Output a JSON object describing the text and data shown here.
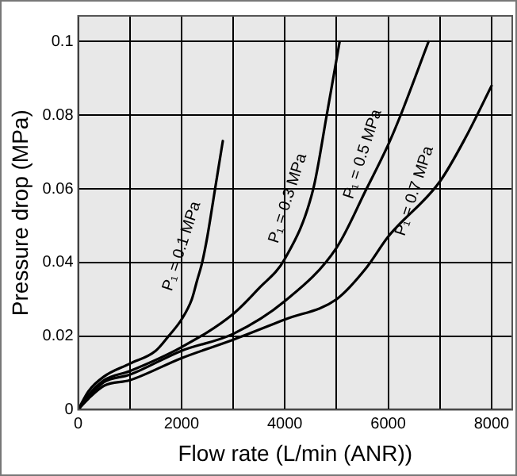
{
  "chart_data": {
    "type": "line",
    "xlabel": "Flow rate (L/min (ANR))",
    "ylabel": "Pressure drop (MPa)",
    "xlim": [
      0,
      8400
    ],
    "ylim": [
      0,
      0.107
    ],
    "xticks": [
      0,
      {
        "value": 1000,
        "label": null
      },
      2000,
      {
        "value": 3000,
        "label": null
      },
      4000,
      {
        "value": 5000,
        "label": null
      },
      6000,
      {
        "value": 7000,
        "label": null
      },
      8000
    ],
    "yticks": [
      0,
      0.02,
      0.04,
      0.06,
      0.08,
      0.1
    ],
    "grid": true,
    "legend": false,
    "marker": "none",
    "line_style": "solid",
    "series": [
      {
        "name": "P₁ = 0.1 MPa",
        "color": "#000000",
        "x": [
          0,
          200,
          500,
          1000,
          1500,
          1750,
          2000,
          2200,
          2300,
          2400,
          2500,
          2650,
          2800
        ],
        "values": [
          0,
          0.005,
          0.009,
          0.0125,
          0.016,
          0.02,
          0.0245,
          0.03,
          0.035,
          0.04,
          0.047,
          0.06,
          0.073
        ]
      },
      {
        "name": "P₁ = 0.3 MPa",
        "color": "#000000",
        "x": [
          0,
          200,
          500,
          1000,
          2000,
          3000,
          3500,
          4000,
          4550,
          4810,
          5060
        ],
        "values": [
          0,
          0.004,
          0.008,
          0.0105,
          0.017,
          0.026,
          0.033,
          0.041,
          0.06,
          0.08,
          0.1
        ]
      },
      {
        "name": "P₁ = 0.5 MPa",
        "color": "#000000",
        "x": [
          0,
          200,
          500,
          1000,
          2000,
          3000,
          4000,
          5000,
          5580,
          6000,
          6240,
          6780
        ],
        "values": [
          0,
          0.0035,
          0.0075,
          0.0095,
          0.016,
          0.0206,
          0.0295,
          0.044,
          0.06,
          0.072,
          0.08,
          0.1
        ]
      },
      {
        "name": "P₁ = 0.7 MPa",
        "color": "#000000",
        "x": [
          0,
          200,
          500,
          1000,
          2000,
          3000,
          4000,
          5000,
          5575,
          6000,
          7000,
          7500,
          8000
        ],
        "values": [
          0,
          0.003,
          0.0065,
          0.008,
          0.014,
          0.019,
          0.0245,
          0.03,
          0.0385,
          0.047,
          0.062,
          0.074,
          0.088
        ]
      }
    ]
  }
}
